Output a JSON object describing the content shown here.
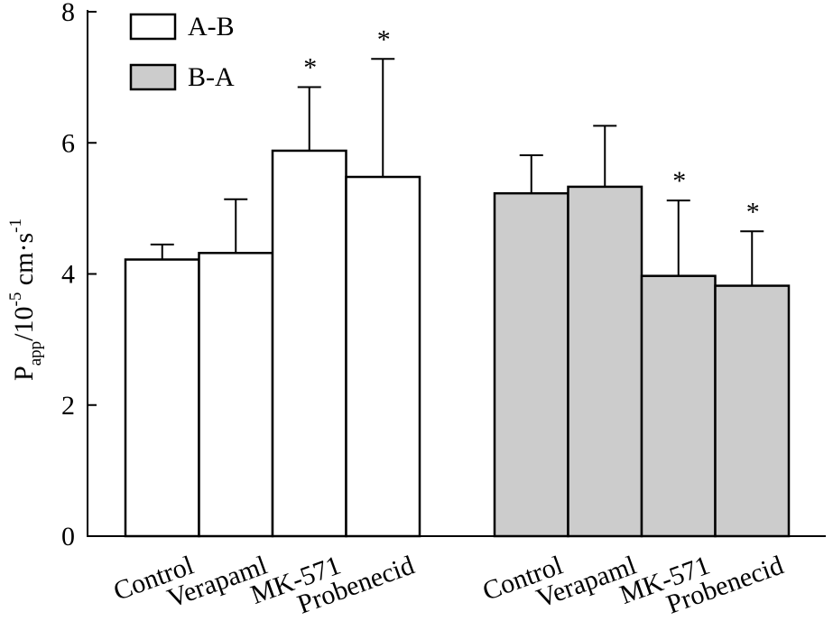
{
  "chart_data": {
    "type": "bar",
    "title": "",
    "xlabel": "",
    "ylabel": {
      "main": "P",
      "sub": "app",
      "unit": "/10",
      "exp1": "-5",
      "unit2": " cm·s",
      "exp2": "-1"
    },
    "ylim": [
      0,
      8
    ],
    "yticks": [
      0,
      2,
      4,
      6,
      8
    ],
    "groups": [
      {
        "name": "A-B",
        "color": "#ffffff",
        "categories": [
          "Control",
          "Verapaml",
          "MK-571",
          "Probenecid"
        ],
        "values": [
          4.22,
          4.32,
          5.88,
          5.48
        ],
        "errors": [
          0.23,
          0.82,
          0.97,
          1.8
        ],
        "significant": [
          false,
          false,
          true,
          true
        ]
      },
      {
        "name": "B-A",
        "color": "#cccccc",
        "categories": [
          "Control",
          "Verapaml",
          "MK-571",
          "Probenecid"
        ],
        "values": [
          5.23,
          5.33,
          3.97,
          3.82
        ],
        "errors": [
          0.58,
          0.93,
          1.15,
          0.83
        ],
        "significant": [
          false,
          false,
          true,
          true
        ]
      }
    ],
    "legend": {
      "position": "top-left",
      "entries": [
        {
          "label": "A-B",
          "color": "#ffffff"
        },
        {
          "label": "B-A",
          "color": "#cccccc"
        }
      ]
    },
    "significance_marker": "*"
  }
}
